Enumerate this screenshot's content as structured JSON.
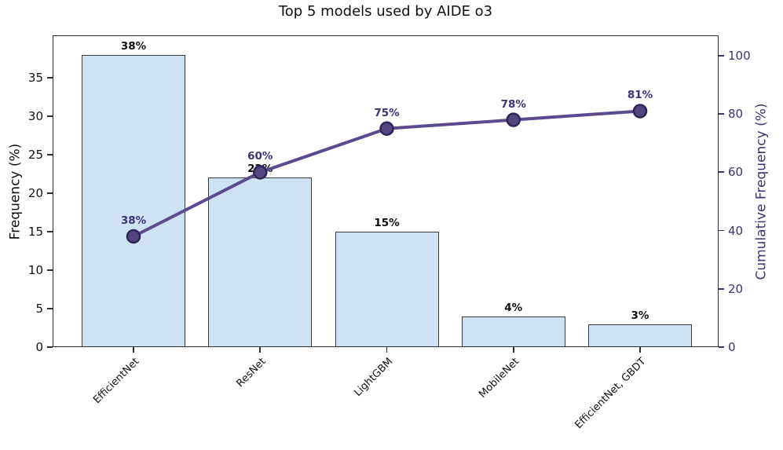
{
  "chart_data": {
    "type": "bar",
    "subtype": "pareto",
    "title": "Top 5 models used by AIDE o3",
    "categories": [
      "EfficientNet",
      "ResNet",
      "LightGBM",
      "MobileNet",
      "EfficientNet, GBDT"
    ],
    "series": [
      {
        "name": "Frequency",
        "type": "bar",
        "axis": "left",
        "values": [
          38,
          22,
          15,
          4,
          3
        ],
        "labels": [
          "38%",
          "22%",
          "15%",
          "4%",
          "3%"
        ]
      },
      {
        "name": "Cumulative Frequency",
        "type": "line",
        "axis": "right",
        "values": [
          38,
          60,
          75,
          78,
          81
        ],
        "labels": [
          "38%",
          "60%",
          "75%",
          "78%",
          "81%"
        ]
      }
    ],
    "xlabel": "",
    "ylabel_left": "Frequency (%)",
    "ylabel_right": "Cumulative Frequency (%)",
    "left_ticks": [
      0,
      5,
      10,
      15,
      20,
      25,
      30,
      35
    ],
    "right_ticks": [
      0,
      20,
      40,
      60,
      80,
      100
    ],
    "left_ylim": [
      0,
      40.5
    ],
    "right_ylim": [
      0,
      107
    ],
    "grid": false,
    "legend": "none",
    "colors": {
      "bar_fill": "#cfe2f3",
      "bar_edge": "#3a3a3a",
      "line": "#5b4a8e",
      "marker_fill": "#53467e",
      "marker_edge": "#2e2657",
      "left_axis_text": "#111111",
      "right_axis_text": "#3d3274",
      "spine": "#2e2e2e",
      "title_text": "#111111"
    }
  }
}
